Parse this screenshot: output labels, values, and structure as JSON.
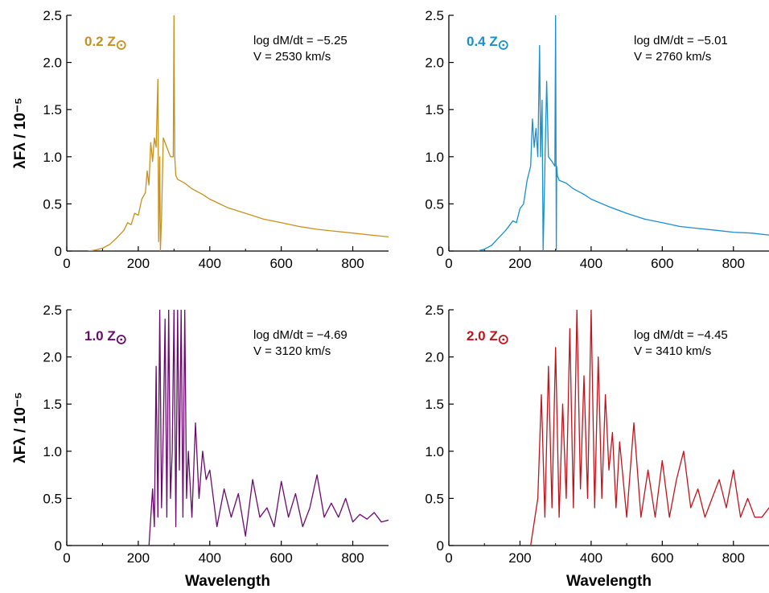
{
  "chart_data": [
    {
      "type": "line",
      "panel": "top-left",
      "metallicity_label": "0.2 Z",
      "annotation_line1": "log dM/dt = −5.25",
      "annotation_line2": "V = 2530 km/s",
      "xlabel": "",
      "ylabel": "λFλ / 10⁻⁵",
      "xlim": [
        0,
        900
      ],
      "ylim": [
        0,
        2.5
      ],
      "xticks": [
        0,
        200,
        400,
        600,
        800
      ],
      "yticks": [
        0,
        0.5,
        1.0,
        1.5,
        2.0,
        2.5
      ],
      "xtick_labels": [
        "0",
        "200",
        "400",
        "600",
        "800"
      ],
      "ytick_labels": [
        "0",
        "0.5",
        "1.0",
        "1.5",
        "2.0",
        "2.5"
      ],
      "color": "#c8901c",
      "series": [
        {
          "x": [
            60,
            80,
            100,
            120,
            140,
            160,
            170,
            180,
            190,
            200,
            210,
            220,
            225,
            230,
            235,
            240,
            245,
            250,
            255,
            257,
            260,
            262,
            265,
            270,
            280,
            290,
            298,
            300,
            302,
            305,
            310,
            330,
            350,
            380,
            400,
            450,
            500,
            550,
            600,
            650,
            700,
            750,
            800,
            850,
            900
          ],
          "y": [
            0,
            0.01,
            0.03,
            0.07,
            0.14,
            0.22,
            0.3,
            0.28,
            0.4,
            0.38,
            0.55,
            0.62,
            0.85,
            0.7,
            1.15,
            0.95,
            1.2,
            1.1,
            1.82,
            0.1,
            1.0,
            0.0,
            0.35,
            1.2,
            1.1,
            1.0,
            1.0,
            2.5,
            1.0,
            0.8,
            0.76,
            0.72,
            0.66,
            0.6,
            0.55,
            0.46,
            0.4,
            0.34,
            0.3,
            0.26,
            0.23,
            0.21,
            0.19,
            0.17,
            0.15
          ]
        }
      ]
    },
    {
      "type": "line",
      "panel": "top-right",
      "metallicity_label": "0.4 Z",
      "annotation_line1": "log dM/dt = −5.01",
      "annotation_line2": "V = 2760 km/s",
      "xlabel": "",
      "ylabel": "",
      "xlim": [
        0,
        900
      ],
      "ylim": [
        0,
        2.5
      ],
      "xticks": [
        0,
        200,
        400,
        600,
        800
      ],
      "yticks": [
        0,
        0.5,
        1.0,
        1.5,
        2.0,
        2.5
      ],
      "xtick_labels": [
        "0",
        "200",
        "400",
        "600",
        "800"
      ],
      "ytick_labels": [
        "0",
        "0.5",
        "1.0",
        "1.5",
        "2.0",
        "2.5"
      ],
      "color": "#1a8fd0",
      "series": [
        {
          "x": [
            80,
            100,
            120,
            140,
            160,
            180,
            190,
            200,
            210,
            220,
            230,
            235,
            240,
            245,
            250,
            255,
            258,
            262,
            265,
            270,
            275,
            280,
            290,
            298,
            300,
            302,
            303,
            305,
            310,
            330,
            350,
            380,
            400,
            450,
            500,
            550,
            600,
            650,
            700,
            750,
            800,
            850,
            900
          ],
          "y": [
            0,
            0.02,
            0.06,
            0.14,
            0.22,
            0.32,
            0.3,
            0.45,
            0.5,
            0.75,
            0.9,
            1.4,
            1.1,
            1.3,
            1.0,
            2.18,
            1.0,
            1.6,
            0.0,
            0.9,
            1.8,
            1.0,
            0.95,
            0.9,
            2.5,
            0.0,
            0.9,
            0.8,
            0.75,
            0.72,
            0.66,
            0.6,
            0.55,
            0.47,
            0.4,
            0.34,
            0.3,
            0.26,
            0.24,
            0.22,
            0.2,
            0.19,
            0.17
          ]
        }
      ]
    },
    {
      "type": "line",
      "panel": "bottom-left",
      "metallicity_label": "1.0 Z",
      "annotation_line1": "log dM/dt = −4.69",
      "annotation_line2": "V = 3120 km/s",
      "xlabel": "Wavelength",
      "ylabel": "λFλ / 10⁻⁵",
      "xlim": [
        0,
        900
      ],
      "ylim": [
        0,
        2.5
      ],
      "xticks": [
        0,
        200,
        400,
        600,
        800
      ],
      "yticks": [
        0,
        0.5,
        1.0,
        1.5,
        2.0,
        2.5
      ],
      "xtick_labels": [
        "0",
        "200",
        "400",
        "600",
        "800"
      ],
      "ytick_labels": [
        "0",
        "0.5",
        "1.0",
        "1.5",
        "2.0",
        "2.5"
      ],
      "color": "#6a0a6e",
      "series": [
        {
          "x": [
            230,
            240,
            245,
            250,
            255,
            260,
            265,
            270,
            275,
            280,
            285,
            290,
            295,
            300,
            305,
            310,
            315,
            320,
            325,
            330,
            335,
            340,
            350,
            360,
            370,
            380,
            390,
            400,
            420,
            440,
            460,
            480,
            500,
            520,
            540,
            560,
            580,
            600,
            620,
            640,
            660,
            680,
            700,
            720,
            740,
            760,
            780,
            800,
            820,
            840,
            860,
            880,
            900
          ],
          "y": [
            0,
            0.6,
            0.2,
            1.9,
            0.3,
            2.5,
            0.4,
            1.2,
            2.4,
            0.3,
            2.5,
            0.5,
            1.0,
            2.5,
            0.2,
            2.5,
            0.8,
            2.5,
            0.3,
            2.5,
            0.5,
            1.0,
            0.3,
            1.3,
            0.5,
            1.0,
            0.7,
            0.8,
            0.2,
            0.6,
            0.3,
            0.55,
            0.1,
            0.7,
            0.3,
            0.4,
            0.2,
            0.68,
            0.3,
            0.55,
            0.2,
            0.4,
            0.75,
            0.3,
            0.45,
            0.3,
            0.5,
            0.25,
            0.33,
            0.28,
            0.35,
            0.25,
            0.27
          ]
        }
      ]
    },
    {
      "type": "line",
      "panel": "bottom-right",
      "metallicity_label": "2.0 Z",
      "annotation_line1": "log dM/dt = −4.45",
      "annotation_line2": "V = 3410 km/s",
      "xlabel": "Wavelength",
      "ylabel": "",
      "xlim": [
        0,
        900
      ],
      "ylim": [
        0,
        2.5
      ],
      "xticks": [
        0,
        200,
        400,
        600,
        800
      ],
      "yticks": [
        0,
        0.5,
        1.0,
        1.5,
        2.0,
        2.5
      ],
      "xtick_labels": [
        "0",
        "200",
        "400",
        "600",
        "800"
      ],
      "ytick_labels": [
        "0",
        "0.5",
        "1.0",
        "1.5",
        "2.0",
        "2.5"
      ],
      "color": "#c0141c",
      "series": [
        {
          "x": [
            230,
            250,
            260,
            270,
            280,
            290,
            300,
            310,
            320,
            330,
            340,
            350,
            360,
            370,
            380,
            390,
            400,
            410,
            420,
            430,
            440,
            450,
            460,
            470,
            480,
            500,
            520,
            540,
            560,
            580,
            600,
            620,
            640,
            660,
            680,
            700,
            720,
            740,
            760,
            780,
            800,
            820,
            840,
            860,
            880,
            900
          ],
          "y": [
            0,
            0.5,
            1.6,
            0.3,
            1.9,
            0.4,
            2.1,
            0.3,
            1.5,
            0.5,
            2.3,
            0.4,
            2.5,
            0.6,
            1.8,
            0.5,
            2.5,
            0.4,
            2.0,
            0.5,
            1.6,
            0.8,
            1.2,
            0.4,
            1.1,
            0.3,
            1.3,
            0.3,
            0.8,
            0.3,
            0.9,
            0.3,
            0.7,
            1.0,
            0.4,
            0.6,
            0.3,
            0.5,
            0.7,
            0.4,
            0.8,
            0.3,
            0.5,
            0.3,
            0.3,
            0.4
          ]
        }
      ]
    }
  ]
}
